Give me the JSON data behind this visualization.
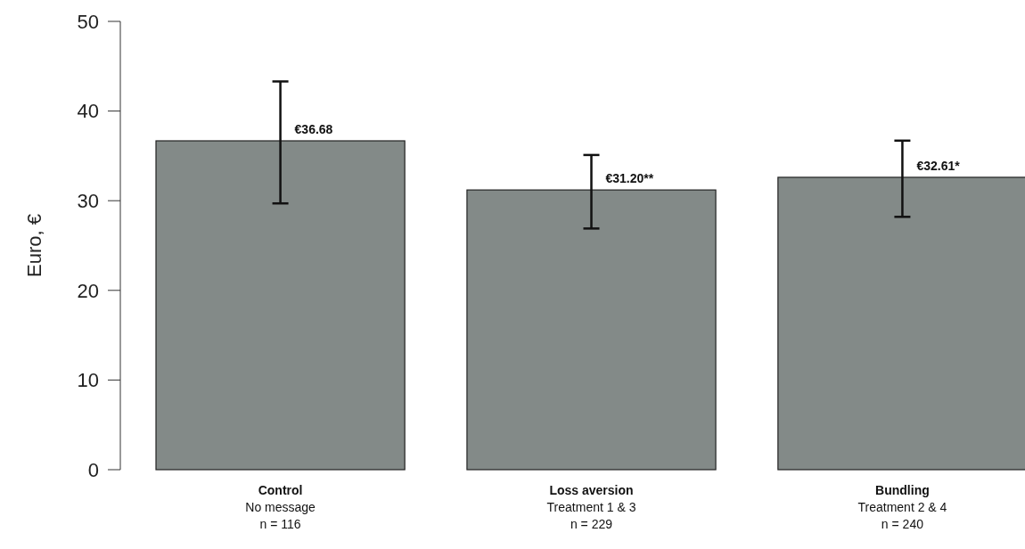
{
  "chart_data": {
    "type": "bar",
    "ylabel": "Euro, €",
    "categories": [
      "Control\nNo message\nn = 116",
      "Loss aversion\nTreatment 1 & 3\nn = 229",
      "Bundling\nTreatment 2 & 4\nn = 240"
    ],
    "values": [
      36.68,
      31.2,
      32.61
    ],
    "value_labels": [
      "€36.68",
      "€31.20**",
      "€32.61*"
    ],
    "errors": [
      [
        29.7,
        43.3
      ],
      [
        26.9,
        35.1
      ],
      [
        28.2,
        36.7
      ]
    ],
    "color": "#838a88",
    "ylim": [
      0,
      50
    ],
    "yticks": [
      0,
      10,
      20,
      30,
      40,
      50
    ],
    "grid": false
  }
}
